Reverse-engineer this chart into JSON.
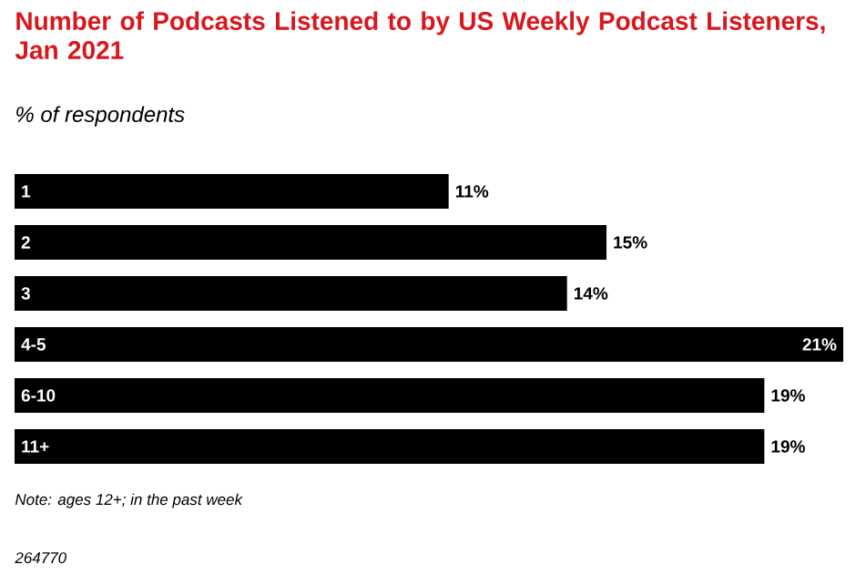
{
  "chart_data": {
    "type": "bar",
    "orientation": "horizontal",
    "title": "Number of Podcasts Listened to by US Weekly Podcast Listeners, Jan 2021",
    "subtitle": "% of respondents",
    "categories": [
      "1",
      "2",
      "3",
      "4-5",
      "6-10",
      "11+"
    ],
    "values": [
      11,
      15,
      14,
      21,
      19,
      19
    ],
    "value_labels": [
      "11%",
      "15%",
      "14%",
      "21%",
      "19%",
      "19%"
    ],
    "color": "#000000",
    "annotations": [
      "Note: ages 12+; in the past week",
      "264770"
    ]
  }
}
